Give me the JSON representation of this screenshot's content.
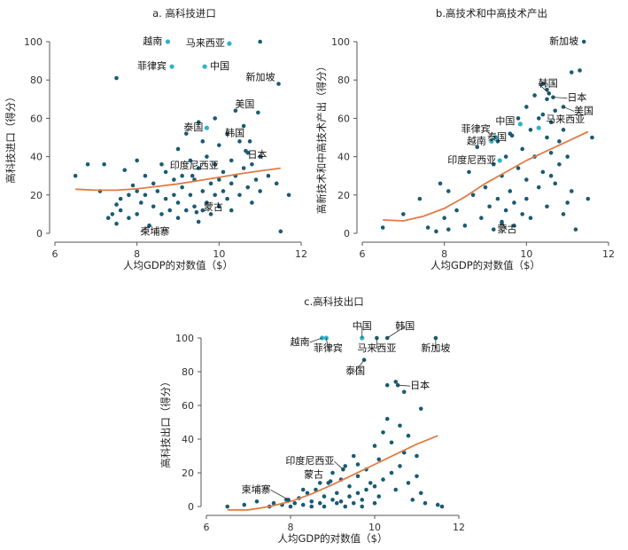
{
  "colors": {
    "point": "#1a5b73",
    "highlight": "#2bb3c9",
    "trend": "#e07b45",
    "axis": "#555555"
  },
  "chart_data": [
    {
      "id": "a",
      "type": "scatter",
      "title": "a. 高科技进口",
      "xlabel": "人均GDP的对数值（$）",
      "ylabel": "高科技进口（得分）",
      "xlim": [
        6,
        12
      ],
      "ylim": [
        0,
        100
      ],
      "xticks": [
        6,
        8,
        10,
        12
      ],
      "yticks": [
        0,
        20,
        40,
        60,
        80,
        100
      ],
      "grid": false,
      "trend": [
        [
          6.5,
          23
        ],
        [
          7.0,
          22.5
        ],
        [
          7.5,
          22.5
        ],
        [
          8.0,
          23.2
        ],
        [
          8.5,
          24.5
        ],
        [
          9.0,
          25.8
        ],
        [
          9.5,
          27.5
        ],
        [
          10.0,
          29.2
        ],
        [
          10.5,
          31
        ],
        [
          11.0,
          32.6
        ],
        [
          11.5,
          34
        ]
      ],
      "points": [
        [
          6.5,
          30
        ],
        [
          6.8,
          36
        ],
        [
          7.1,
          22
        ],
        [
          7.2,
          36
        ],
        [
          7.3,
          8
        ],
        [
          7.4,
          10
        ],
        [
          7.5,
          81
        ],
        [
          7.5,
          15
        ],
        [
          7.5,
          5
        ],
        [
          7.6,
          18
        ],
        [
          7.6,
          12
        ],
        [
          7.7,
          33
        ],
        [
          7.8,
          20
        ],
        [
          7.8,
          8
        ],
        [
          7.9,
          25
        ],
        [
          8.0,
          38
        ],
        [
          8.0,
          22
        ],
        [
          8.0,
          10
        ],
        [
          8.1,
          16
        ],
        [
          8.2,
          30
        ],
        [
          8.2,
          20
        ],
        [
          8.3,
          4
        ],
        [
          8.4,
          26
        ],
        [
          8.4,
          14
        ],
        [
          8.5,
          22
        ],
        [
          8.6,
          36
        ],
        [
          8.6,
          10
        ],
        [
          8.7,
          18
        ],
        [
          8.7,
          32
        ],
        [
          8.8,
          12
        ],
        [
          8.9,
          28
        ],
        [
          8.9,
          20
        ],
        [
          9.0,
          44
        ],
        [
          9.0,
          16
        ],
        [
          9.0,
          8
        ],
        [
          9.1,
          30
        ],
        [
          9.1,
          24
        ],
        [
          9.2,
          52
        ],
        [
          9.2,
          12
        ],
        [
          9.3,
          38
        ],
        [
          9.3,
          20
        ],
        [
          9.4,
          28
        ],
        [
          9.4,
          14
        ],
        [
          9.5,
          58
        ],
        [
          9.5,
          34
        ],
        [
          9.5,
          6
        ],
        [
          9.6,
          48
        ],
        [
          9.6,
          22
        ],
        [
          9.6,
          12
        ],
        [
          9.7,
          40
        ],
        [
          9.7,
          16
        ],
        [
          9.8,
          26
        ],
        [
          9.8,
          10
        ],
        [
          9.9,
          60
        ],
        [
          9.9,
          36
        ],
        [
          9.9,
          20
        ],
        [
          10.0,
          46
        ],
        [
          10.0,
          28
        ],
        [
          10.0,
          14
        ],
        [
          10.1,
          32
        ],
        [
          10.1,
          22
        ],
        [
          10.2,
          52
        ],
        [
          10.2,
          18
        ],
        [
          10.3,
          38
        ],
        [
          10.3,
          26
        ],
        [
          10.3,
          12
        ],
        [
          10.4,
          64
        ],
        [
          10.4,
          30
        ],
        [
          10.5,
          48
        ],
        [
          10.5,
          20
        ],
        [
          10.6,
          56
        ],
        [
          10.6,
          34
        ],
        [
          10.7,
          42
        ],
        [
          10.7,
          24
        ],
        [
          10.8,
          36
        ],
        [
          10.8,
          16
        ],
        [
          10.9,
          28
        ],
        [
          11.0,
          40
        ],
        [
          11.0,
          22
        ],
        [
          11.2,
          30
        ],
        [
          11.4,
          26
        ],
        [
          11.5,
          1
        ],
        [
          11.7,
          20
        ],
        [
          11.0,
          100
        ]
      ],
      "highlights": [
        {
          "label": "越南",
          "x": 8.75,
          "y": 100
        },
        {
          "label": "马来西亚",
          "x": 10.25,
          "y": 99
        },
        {
          "label": "菲律宾",
          "x": 8.85,
          "y": 87
        },
        {
          "label": "中国",
          "x": 9.65,
          "y": 87
        },
        {
          "label": "泰国",
          "x": 9.7,
          "y": 55
        }
      ],
      "annotations": [
        {
          "label": "新加坡",
          "x": 11.45,
          "y": 78
        },
        {
          "label": "美国",
          "x": 10.95,
          "y": 63
        },
        {
          "label": "韩国",
          "x": 10.75,
          "y": 48
        },
        {
          "label": "日本",
          "x": 10.65,
          "y": 43
        },
        {
          "label": "印度尼西亚",
          "x": 9.35,
          "y": 30
        },
        {
          "label": "蒙古",
          "x": 9.45,
          "y": 11
        },
        {
          "label": "柬埔寨",
          "x": 8.3,
          "y": 4
        }
      ]
    },
    {
      "id": "b",
      "type": "scatter",
      "title": "b.高技术和中高技术产出",
      "xlabel": "人均GDP的对数值（$）",
      "ylabel": "高新技术和中高技术产出（得分）",
      "xlim": [
        6,
        12
      ],
      "ylim": [
        0,
        100
      ],
      "xticks": [
        6,
        8,
        10,
        12
      ],
      "yticks": [
        0,
        20,
        40,
        60,
        80,
        100
      ],
      "grid": false,
      "trend": [
        [
          6.5,
          7
        ],
        [
          7.0,
          6.5
        ],
        [
          7.5,
          9
        ],
        [
          8.0,
          13
        ],
        [
          8.5,
          19
        ],
        [
          9.0,
          26
        ],
        [
          9.5,
          32
        ],
        [
          10.0,
          38
        ],
        [
          10.5,
          43
        ],
        [
          11.0,
          48
        ],
        [
          11.5,
          53
        ]
      ],
      "points": [
        [
          6.5,
          3
        ],
        [
          7.0,
          10
        ],
        [
          7.4,
          18
        ],
        [
          7.6,
          3
        ],
        [
          7.8,
          1
        ],
        [
          7.9,
          26
        ],
        [
          8.0,
          8
        ],
        [
          8.1,
          2
        ],
        [
          8.1,
          22
        ],
        [
          8.3,
          12
        ],
        [
          8.5,
          4
        ],
        [
          8.6,
          32
        ],
        [
          8.7,
          20
        ],
        [
          8.8,
          45
        ],
        [
          8.9,
          8
        ],
        [
          9.0,
          24
        ],
        [
          9.1,
          14
        ],
        [
          9.2,
          36
        ],
        [
          9.2,
          2
        ],
        [
          9.3,
          18
        ],
        [
          9.3,
          48
        ],
        [
          9.4,
          6
        ],
        [
          9.4,
          30
        ],
        [
          9.5,
          12
        ],
        [
          9.5,
          40
        ],
        [
          9.6,
          22
        ],
        [
          9.6,
          52
        ],
        [
          9.7,
          4
        ],
        [
          9.7,
          16
        ],
        [
          9.8,
          34
        ],
        [
          9.8,
          60
        ],
        [
          9.9,
          10
        ],
        [
          9.9,
          44
        ],
        [
          10.0,
          28
        ],
        [
          10.0,
          66
        ],
        [
          10.0,
          18
        ],
        [
          10.1,
          54
        ],
        [
          10.1,
          8
        ],
        [
          10.2,
          40
        ],
        [
          10.2,
          72
        ],
        [
          10.3,
          24
        ],
        [
          10.3,
          60
        ],
        [
          10.4,
          32
        ],
        [
          10.4,
          78
        ],
        [
          10.5,
          14
        ],
        [
          10.5,
          50
        ],
        [
          10.5,
          70
        ],
        [
          10.6,
          42
        ],
        [
          10.6,
          58
        ],
        [
          10.7,
          26
        ],
        [
          10.7,
          64
        ],
        [
          10.8,
          48
        ],
        [
          10.8,
          36
        ],
        [
          10.9,
          10
        ],
        [
          10.9,
          54
        ],
        [
          11.0,
          16
        ],
        [
          11.0,
          40
        ],
        [
          11.1,
          84
        ],
        [
          11.1,
          22
        ],
        [
          11.2,
          2
        ],
        [
          11.3,
          85
        ],
        [
          11.5,
          18
        ],
        [
          11.6,
          50
        ],
        [
          10.5,
          75
        ],
        [
          10.4,
          62
        ],
        [
          10.6,
          30
        ]
      ],
      "highlights": [
        {
          "label": "中国",
          "x": 9.85,
          "y": 57
        },
        {
          "label": "马来西亚",
          "x": 10.3,
          "y": 55
        },
        {
          "label": "菲律宾",
          "x": 9.25,
          "y": 50
        },
        {
          "label": "越南",
          "x": 9.15,
          "y": 48
        },
        {
          "label": "印度尼西亚",
          "x": 9.35,
          "y": 38
        }
      ],
      "annotations": [
        {
          "label": "新加坡",
          "x": 11.4,
          "y": 100
        },
        {
          "label": "韩国",
          "x": 10.55,
          "y": 73
        },
        {
          "label": "日本",
          "x": 10.65,
          "y": 71
        },
        {
          "label": "美国",
          "x": 10.9,
          "y": 66
        },
        {
          "label": "泰国",
          "x": 9.65,
          "y": 51
        },
        {
          "label": "蒙古",
          "x": 9.4,
          "y": 5
        }
      ]
    },
    {
      "id": "c",
      "type": "scatter",
      "title": "c.高科技出口",
      "xlabel": "人均GDP的对数值（$）",
      "ylabel": "高科技出口（得分）",
      "xlim": [
        6,
        12
      ],
      "ylim": [
        0,
        100
      ],
      "xticks": [
        6,
        8,
        10,
        12
      ],
      "yticks": [
        0,
        20,
        40,
        60,
        80,
        100
      ],
      "grid": false,
      "trend": [
        [
          6.5,
          -2
        ],
        [
          7.0,
          -2
        ],
        [
          7.5,
          0
        ],
        [
          8.0,
          3
        ],
        [
          8.5,
          7.5
        ],
        [
          9.0,
          13
        ],
        [
          9.5,
          19
        ],
        [
          10.0,
          25
        ],
        [
          10.5,
          31
        ],
        [
          11.0,
          37
        ],
        [
          11.5,
          42
        ]
      ],
      "points": [
        [
          6.5,
          0
        ],
        [
          6.9,
          1
        ],
        [
          7.2,
          3
        ],
        [
          7.5,
          0
        ],
        [
          7.6,
          2
        ],
        [
          7.8,
          1
        ],
        [
          7.9,
          4
        ],
        [
          8.0,
          0
        ],
        [
          8.1,
          2
        ],
        [
          8.2,
          5
        ],
        [
          8.3,
          1
        ],
        [
          8.4,
          8
        ],
        [
          8.5,
          0
        ],
        [
          8.5,
          3
        ],
        [
          8.6,
          10
        ],
        [
          8.7,
          2
        ],
        [
          8.8,
          6
        ],
        [
          8.8,
          0
        ],
        [
          8.9,
          14
        ],
        [
          9.0,
          4
        ],
        [
          9.0,
          20
        ],
        [
          9.1,
          2
        ],
        [
          9.1,
          8
        ],
        [
          9.2,
          16
        ],
        [
          9.3,
          0
        ],
        [
          9.3,
          24
        ],
        [
          9.4,
          6
        ],
        [
          9.4,
          12
        ],
        [
          9.5,
          2
        ],
        [
          9.5,
          30
        ],
        [
          9.6,
          8
        ],
        [
          9.6,
          18
        ],
        [
          9.7,
          0
        ],
        [
          9.7,
          4
        ],
        [
          9.8,
          22
        ],
        [
          9.8,
          10
        ],
        [
          9.9,
          14
        ],
        [
          10.0,
          36
        ],
        [
          10.0,
          2
        ],
        [
          10.1,
          28
        ],
        [
          10.1,
          6
        ],
        [
          10.2,
          44
        ],
        [
          10.2,
          16
        ],
        [
          10.3,
          52
        ],
        [
          10.3,
          72
        ],
        [
          10.4,
          20
        ],
        [
          10.4,
          38
        ],
        [
          10.5,
          74
        ],
        [
          10.5,
          10
        ],
        [
          10.6,
          48
        ],
        [
          10.6,
          24
        ],
        [
          10.7,
          68
        ],
        [
          10.7,
          32
        ],
        [
          10.8,
          14
        ],
        [
          10.8,
          42
        ],
        [
          10.9,
          4
        ],
        [
          11.0,
          30
        ],
        [
          11.0,
          18
        ],
        [
          11.1,
          58
        ],
        [
          11.1,
          8
        ],
        [
          11.2,
          2
        ],
        [
          11.5,
          1
        ],
        [
          11.6,
          0
        ],
        [
          8.3,
          10
        ],
        [
          8.7,
          14
        ],
        [
          9.2,
          3
        ],
        [
          9.6,
          25
        ],
        [
          10.0,
          12
        ]
      ],
      "highlights": [
        {
          "label": "越南",
          "x": 8.75,
          "y": 100
        },
        {
          "label": "菲律宾",
          "x": 8.85,
          "y": 100
        },
        {
          "label": "中国",
          "x": 9.7,
          "y": 100
        }
      ],
      "annotations": [
        {
          "label": "韩国",
          "x": 10.3,
          "y": 100
        },
        {
          "label": "马来西亚",
          "x": 10.05,
          "y": 100
        },
        {
          "label": "新加坡",
          "x": 11.45,
          "y": 100
        },
        {
          "label": "泰国",
          "x": 9.75,
          "y": 87
        },
        {
          "label": "日本",
          "x": 10.55,
          "y": 72
        },
        {
          "label": "印度尼西亚",
          "x": 9.25,
          "y": 22
        },
        {
          "label": "蒙古",
          "x": 8.95,
          "y": 15
        },
        {
          "label": "柬埔寨",
          "x": 7.95,
          "y": 4
        }
      ]
    }
  ]
}
